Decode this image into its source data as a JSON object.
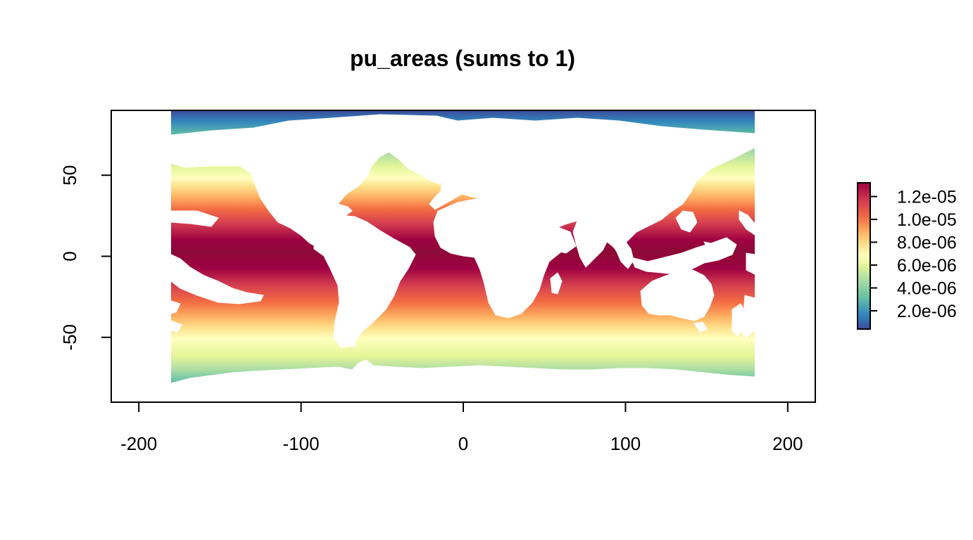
{
  "chart_data": {
    "type": "heatmap",
    "title": "pu_areas (sums to 1)",
    "xlabel": "",
    "ylabel": "",
    "xlim": [
      -217,
      217
    ],
    "ylim": [
      -90,
      90
    ],
    "data_extent": {
      "x": [
        -180,
        180
      ],
      "y": [
        -84,
        90
      ]
    },
    "x_ticks": [
      -200,
      -100,
      0,
      100,
      200
    ],
    "x_tick_labels": [
      "-200",
      "-100",
      "0",
      "100",
      "200"
    ],
    "y_ticks": [
      -50,
      0,
      50
    ],
    "y_tick_labels": [
      "-50",
      "0",
      "50"
    ],
    "value_range": [
      4e-07,
      1.32e-05
    ],
    "legend": {
      "placement": "right",
      "ticks": [
        2e-06,
        4e-06,
        6e-06,
        8e-06,
        1e-05,
        1.2e-05
      ],
      "labels": [
        "2.0e-06",
        "4.0e-06",
        "6.0e-06",
        "8.0e-06",
        "1.0e-05",
        "1.2e-05"
      ]
    },
    "palette": [
      "#3B4B9C",
      "#3288BD",
      "#66C2A5",
      "#ABDDA4",
      "#E6F598",
      "#FFFFBF",
      "#FEE08B",
      "#FDAE61",
      "#F46D43",
      "#D53E4F",
      "#9E0142"
    ],
    "land_color": "#FFFFFF",
    "grid": false
  }
}
